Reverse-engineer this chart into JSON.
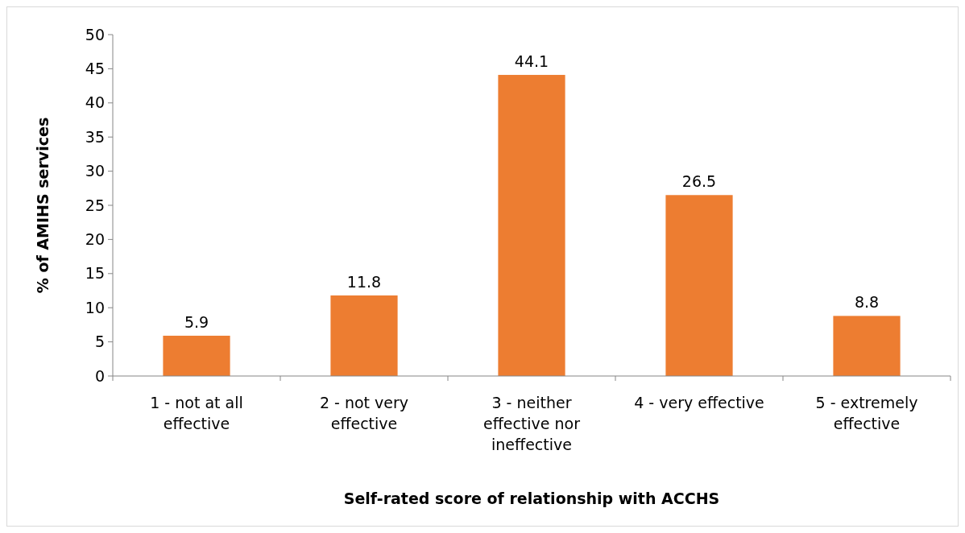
{
  "chart_data": {
    "type": "bar",
    "xlabel": "Self-rated score of relationship with ACCHS",
    "ylabel": "% of AMIHS services",
    "categories": [
      "1 - not at all effective",
      "2 - not very effective",
      "3 - neither effective nor ineffective",
      "4 - very effective",
      "5 - extremely effective"
    ],
    "values": [
      5.9,
      11.8,
      44.1,
      26.5,
      8.8
    ],
    "color": "#ed7d31",
    "ylim": [
      0,
      50
    ],
    "yticks": [
      0,
      5,
      10,
      15,
      20,
      25,
      30,
      35,
      40,
      45,
      50
    ],
    "grid": false,
    "data_labels": true
  }
}
